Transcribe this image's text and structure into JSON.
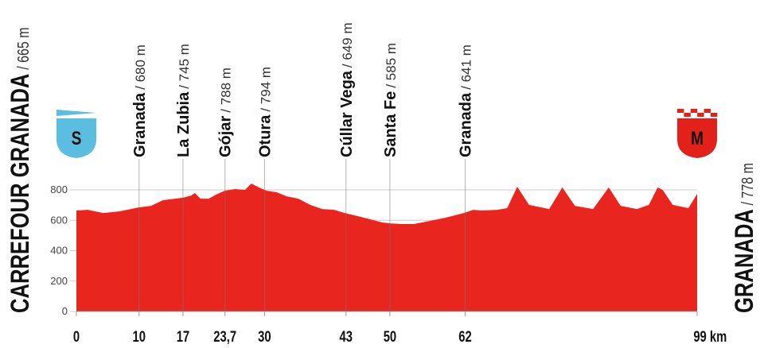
{
  "chart_data": {
    "type": "area",
    "color": "#e8261f",
    "x": [
      0,
      1.8,
      4.3,
      6.9,
      10,
      11.9,
      13.8,
      17,
      18.3,
      18.9,
      19.8,
      21.1,
      22.3,
      23.7,
      25.3,
      26.9,
      27.9,
      29.1,
      30.3,
      32,
      33.5,
      35.4,
      37.3,
      39.2,
      41.1,
      42.8,
      44.9,
      46.8,
      48.7,
      50,
      51.9,
      53.8,
      56.4,
      58.9,
      61.8,
      63.3,
      64.6,
      67.1,
      68.7,
      70.3,
      72.2,
      75.4,
      77.5,
      79.5,
      82.4,
      84.9,
      86.8,
      89.4,
      91.3,
      92.7,
      93.5,
      95.1,
      97.6,
      99
    ],
    "values": [
      664,
      669,
      648,
      659,
      685,
      695,
      732,
      748,
      763,
      779,
      742,
      742,
      769,
      795,
      805,
      800,
      842,
      816,
      795,
      784,
      758,
      742,
      701,
      674,
      669,
      648,
      627,
      607,
      586,
      580,
      575,
      575,
      596,
      617,
      648,
      669,
      664,
      669,
      680,
      821,
      701,
      674,
      816,
      695,
      674,
      816,
      695,
      674,
      701,
      816,
      800,
      701,
      680,
      774
    ],
    "xlim": [
      0,
      99
    ],
    "ylim": [
      0,
      800
    ],
    "xticks": [
      0,
      10,
      17,
      {
        "value": 23.7,
        "label": "23,7"
      },
      30,
      43,
      50,
      62,
      {
        "value": 99,
        "label": "99 km"
      }
    ],
    "yticks": [
      0,
      200,
      400,
      600,
      800
    ],
    "grid": true,
    "start": {
      "name": "CARREFOUR GRANADA",
      "alt": "/ 665 m",
      "icon": "S",
      "icon_color": "#5bbde0"
    },
    "finish": {
      "name": "GRANADA",
      "alt": "/ 778 m",
      "icon": "M",
      "icon_color": "#e3211b"
    },
    "waypoints": [
      {
        "name": "Granada",
        "alt": "/ 680 m",
        "x": 10
      },
      {
        "name": "La Zubia",
        "alt": "/ 745 m",
        "x": 17
      },
      {
        "name": "Gójar",
        "alt": "/ 788 m",
        "x": 23.7
      },
      {
        "name": "Otura",
        "alt": "/ 794 m",
        "x": 30
      },
      {
        "name": "Cúllar Vega",
        "alt": "/ 649 m",
        "x": 43
      },
      {
        "name": "Santa Fe",
        "alt": "/ 585 m",
        "x": 50
      },
      {
        "name": "Granada",
        "alt": "/ 641 m",
        "x": 62
      }
    ]
  }
}
